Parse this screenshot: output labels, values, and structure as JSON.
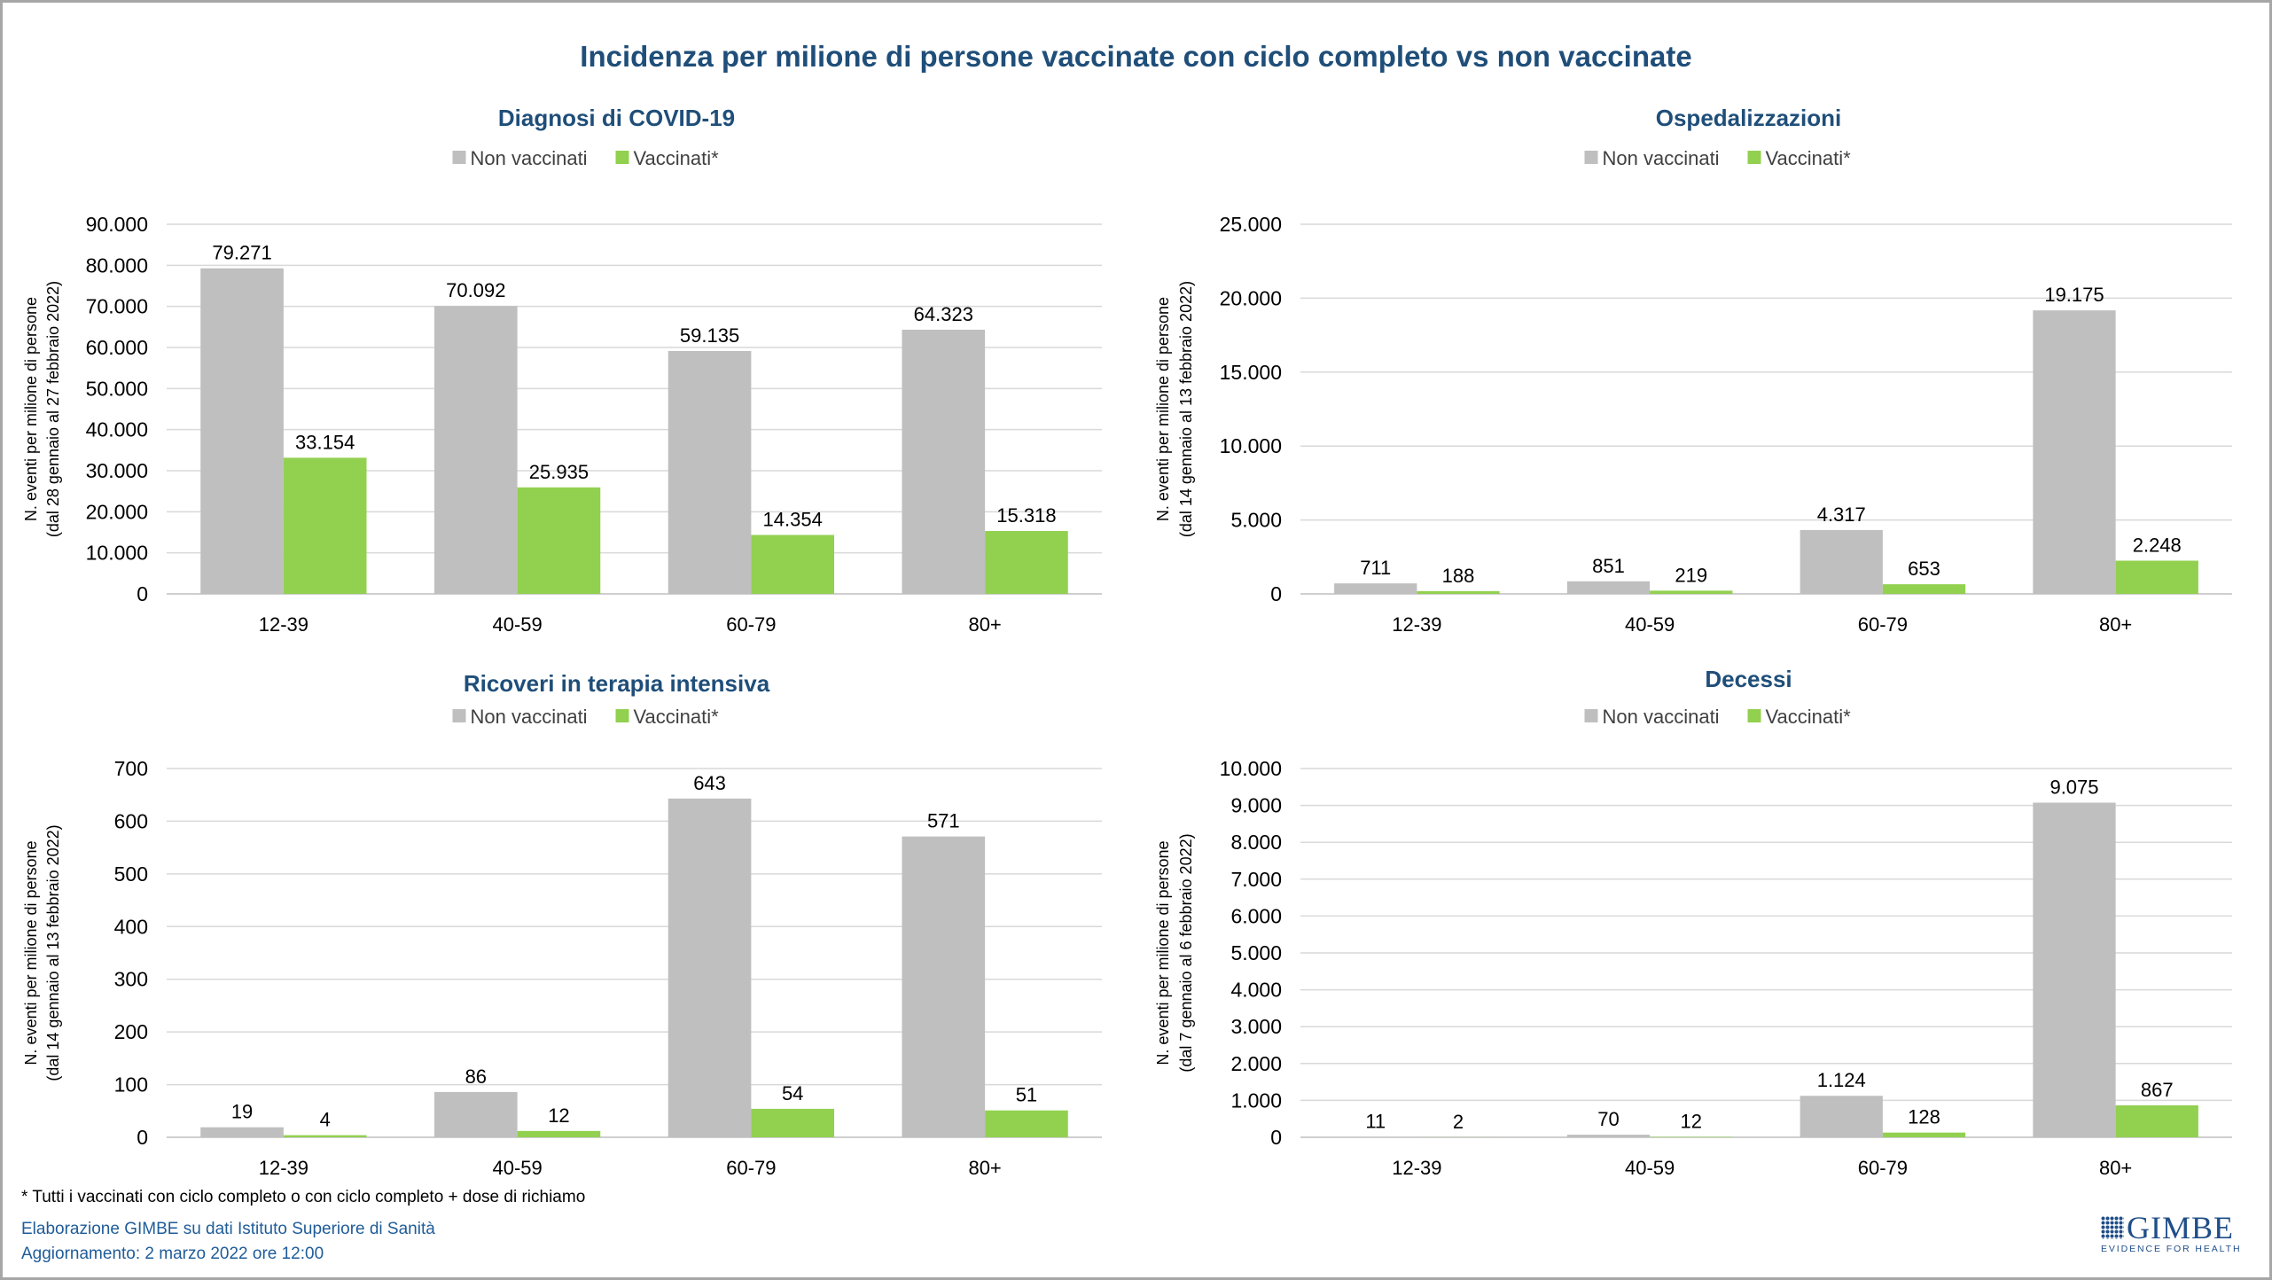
{
  "title": "Incidenza per milione di persone vaccinate con ciclo completo vs non vaccinate",
  "colors": {
    "non_vaccinati": "#bfbfbf",
    "vaccinati": "#92d050",
    "title": "#1f4e79"
  },
  "chart_data": [
    {
      "type": "bar",
      "title": "Diagnosi di COVID-19",
      "ylabel": [
        "N. eventi per milione di persone",
        "(dal 28  gennaio al 27  febbraio 2022)"
      ],
      "categories": [
        "12-39",
        "40-59",
        "60-79",
        "80+"
      ],
      "ylim": [
        0,
        90000
      ],
      "ytick_step": 10000,
      "grid": true,
      "legend": "top",
      "series": [
        {
          "name": "Non vaccinati",
          "values": [
            79271,
            70092,
            59135,
            64323
          ]
        },
        {
          "name": "Vaccinati*",
          "values": [
            33154,
            25935,
            14354,
            15318
          ]
        }
      ]
    },
    {
      "type": "bar",
      "title": "Ospedalizzazioni",
      "ylabel": [
        "N. eventi per milione di persone",
        "(dal 14  gennaio al 13  febbraio 2022)"
      ],
      "categories": [
        "12-39",
        "40-59",
        "60-79",
        "80+"
      ],
      "ylim": [
        0,
        25000
      ],
      "ytick_step": 5000,
      "grid": true,
      "legend": "top",
      "series": [
        {
          "name": "Non vaccinati",
          "values": [
            711,
            851,
            4317,
            19175
          ]
        },
        {
          "name": "Vaccinati*",
          "values": [
            188,
            219,
            653,
            2248
          ]
        }
      ]
    },
    {
      "type": "bar",
      "title": "Ricoveri in terapia intensiva",
      "ylabel": [
        "N. eventi per milione di persone",
        "(dal 14  gennaio al 13  febbraio 2022)"
      ],
      "categories": [
        "12-39",
        "40-59",
        "60-79",
        "80+"
      ],
      "ylim": [
        0,
        700
      ],
      "ytick_step": 100,
      "grid": true,
      "legend": "top",
      "series": [
        {
          "name": "Non vaccinati",
          "values": [
            19,
            86,
            643,
            571
          ]
        },
        {
          "name": "Vaccinati*",
          "values": [
            4,
            12,
            54,
            51
          ]
        }
      ]
    },
    {
      "type": "bar",
      "title": "Decessi",
      "ylabel": [
        "N. eventi per milione di persone",
        "(dal 7  gennaio al 6  febbraio 2022)"
      ],
      "categories": [
        "12-39",
        "40-59",
        "60-79",
        "80+"
      ],
      "ylim": [
        0,
        10000
      ],
      "ytick_step": 1000,
      "grid": true,
      "legend": "top",
      "series": [
        {
          "name": "Non vaccinati",
          "values": [
            11,
            70,
            1124,
            9075
          ]
        },
        {
          "name": "Vaccinati*",
          "values": [
            2,
            12,
            128,
            867
          ]
        }
      ]
    }
  ],
  "footer": {
    "note": "* Tutti i vaccinati con ciclo completo o con ciclo completo +  dose di richiamo",
    "credit": "Elaborazione GIMBE su dati Istituto Superiore di Sanità",
    "updated": "Aggiornamento: 2 marzo 2022 ore 12:00"
  },
  "logo": {
    "name": "GIMBE",
    "tagline": "EVIDENCE FOR HEALTH"
  }
}
